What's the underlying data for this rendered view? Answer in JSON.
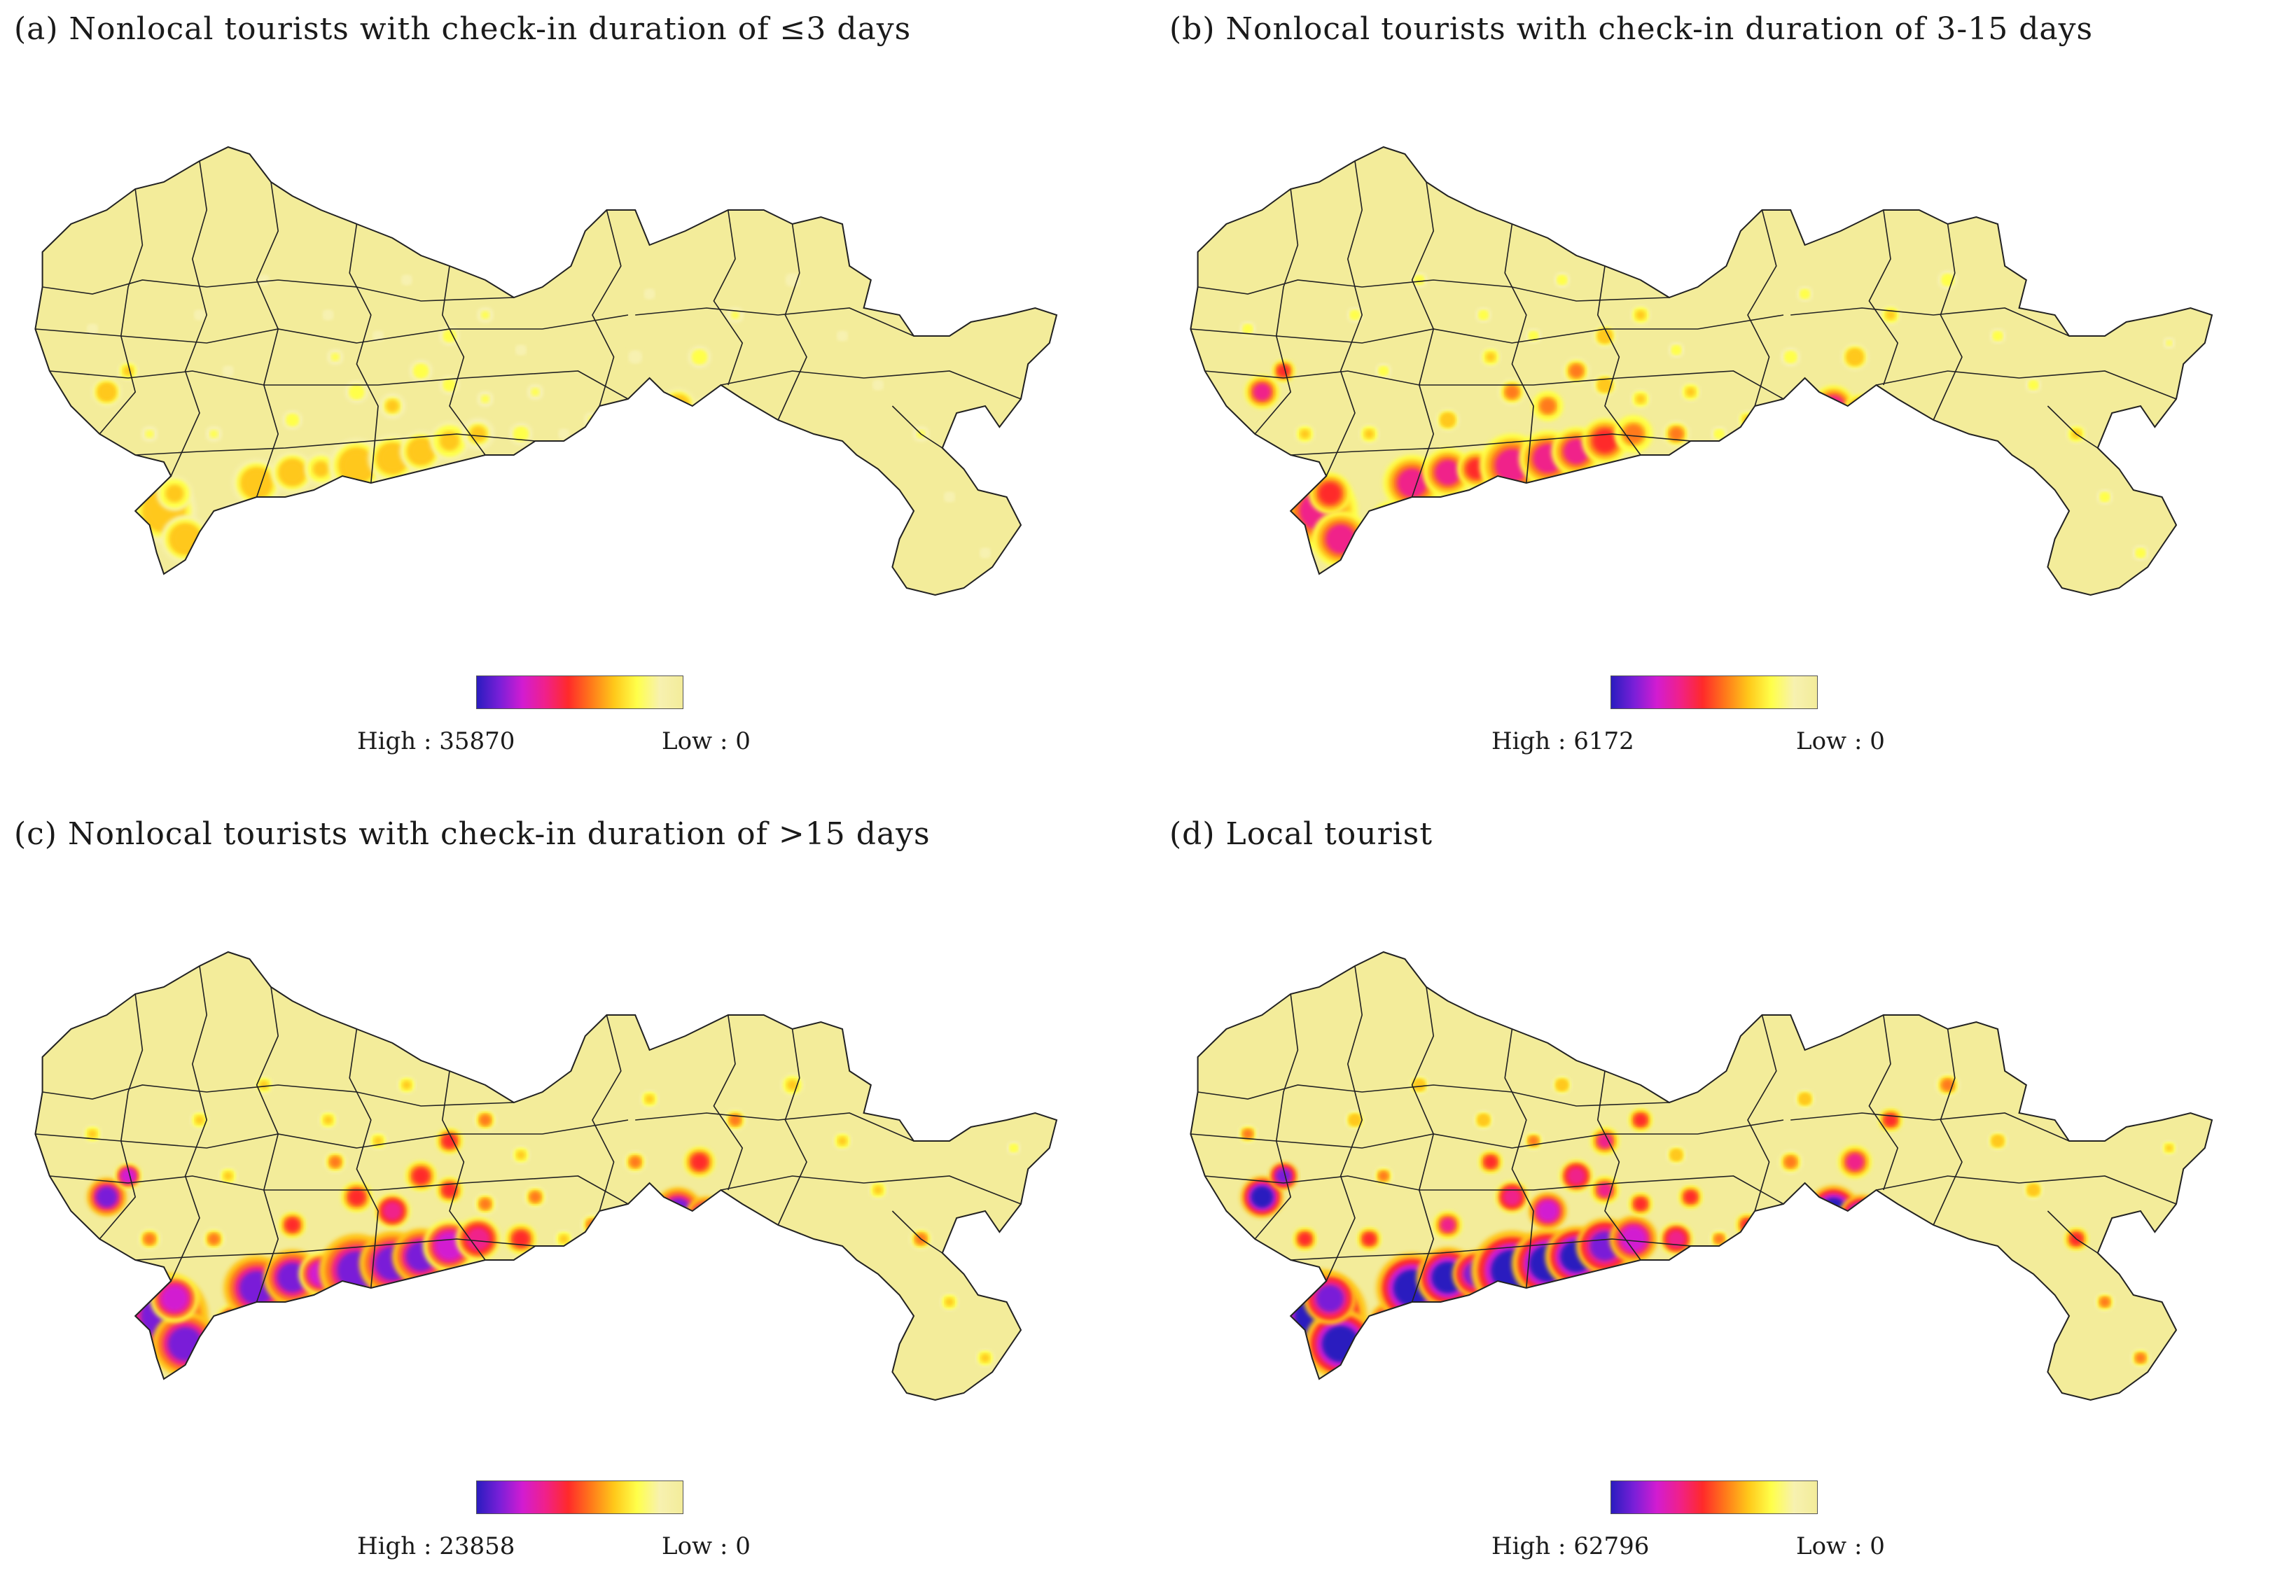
{
  "colors": {
    "land": "#f3ec9a",
    "border": "#222222",
    "ramp": [
      "#2a1cbf",
      "#7a1fd8",
      "#d21cd1",
      "#f0208a",
      "#ff2a2a",
      "#ff7a1a",
      "#ffc81a",
      "#ffff4a",
      "#f7f1b0",
      "#f3ec9a"
    ]
  },
  "panels": [
    {
      "id": "a",
      "title": "(a) Nonlocal tourists with check-in duration of ≤3 days",
      "legend": {
        "high_label": "High : 35870",
        "low_label": "Low : 0"
      },
      "intensity": 0.35
    },
    {
      "id": "b",
      "title": "(b) Nonlocal tourists with check-in duration of 3-15 days",
      "legend": {
        "high_label": "High : 6172",
        "low_label": "Low : 0"
      },
      "intensity": 0.6
    },
    {
      "id": "c",
      "title": "(c) Nonlocal tourists with check-in duration of >15 days",
      "legend": {
        "high_label": "High : 23858",
        "low_label": "Low : 0"
      },
      "intensity": 0.85
    },
    {
      "id": "d",
      "title": "(d) Local tourist",
      "legend": {
        "high_label": "High : 62796",
        "low_label": "Low : 0"
      },
      "intensity": 1.0
    }
  ]
}
